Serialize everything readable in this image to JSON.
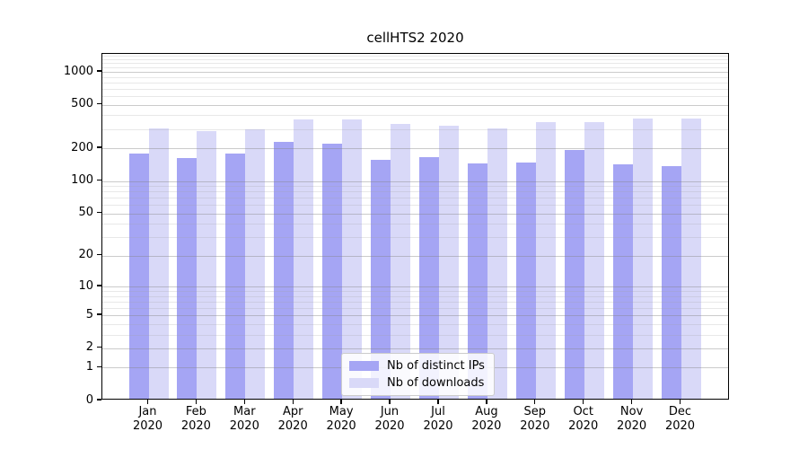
{
  "title": "cellHTS2 2020",
  "chart_data": {
    "type": "bar",
    "title": "cellHTS2 2020",
    "categories": [
      "Jan 2020",
      "Feb 2020",
      "Mar 2020",
      "Apr 2020",
      "May 2020",
      "Jun 2020",
      "Jul 2020",
      "Aug 2020",
      "Sep 2020",
      "Oct 2020",
      "Nov 2020",
      "Dec 2020"
    ],
    "series": [
      {
        "name": "Nb of distinct IPs",
        "color": "#a5a5f4",
        "values": [
          172,
          157,
          171,
          220,
          212,
          152,
          158,
          139,
          143,
          184,
          136,
          132
        ]
      },
      {
        "name": "Nb of downloads",
        "color": "#d9d9f8",
        "values": [
          292,
          278,
          287,
          353,
          354,
          323,
          311,
          292,
          335,
          335,
          357,
          361
        ]
      }
    ],
    "xlabel": "",
    "ylabel": "",
    "yscale": "log1p",
    "ylim": [
      0,
      1458
    ],
    "yticks": [
      0,
      1,
      2,
      5,
      10,
      20,
      50,
      100,
      200,
      500,
      1000
    ],
    "yticks_minor": [
      3,
      4,
      6,
      7,
      8,
      9,
      30,
      40,
      60,
      70,
      80,
      90,
      300,
      400,
      600,
      700,
      800,
      900,
      1100,
      1200,
      1300,
      1400
    ],
    "grid": true,
    "legend_position": "lower center"
  },
  "legend": {
    "items": [
      {
        "label": "Nb of distinct IPs"
      },
      {
        "label": "Nb of downloads"
      }
    ]
  }
}
